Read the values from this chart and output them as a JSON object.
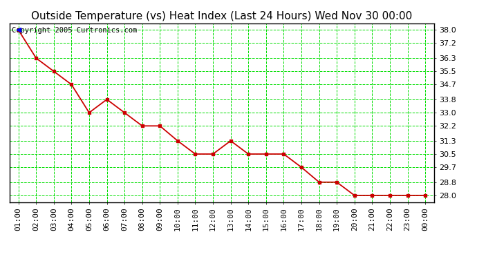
{
  "title": "Outside Temperature (vs) Heat Index (Last 24 Hours) Wed Nov 30 00:00",
  "copyright_text": "Copyright 2005 Curtronics.com",
  "x_labels": [
    "01:00",
    "02:00",
    "03:00",
    "04:00",
    "05:00",
    "06:00",
    "07:00",
    "08:00",
    "09:00",
    "10:00",
    "11:00",
    "12:00",
    "13:00",
    "14:00",
    "15:00",
    "16:00",
    "17:00",
    "18:00",
    "19:00",
    "20:00",
    "21:00",
    "22:00",
    "23:00",
    "00:00"
  ],
  "y_values": [
    38.0,
    36.3,
    35.5,
    34.7,
    33.0,
    33.8,
    33.0,
    32.2,
    32.2,
    31.3,
    30.5,
    30.5,
    31.3,
    30.5,
    30.5,
    30.5,
    29.7,
    28.8,
    28.8,
    28.0,
    28.0,
    28.0,
    28.0,
    28.0
  ],
  "y_min": 27.6,
  "y_max": 38.4,
  "y_ticks": [
    28.0,
    28.8,
    29.7,
    30.5,
    31.3,
    32.2,
    33.0,
    33.8,
    34.7,
    35.5,
    36.3,
    37.2,
    38.0
  ],
  "line_color": "#cc0000",
  "marker_color": "#cc0000",
  "background_color": "#ffffff",
  "plot_bg_color": "#ffffff",
  "grid_color": "#00dd00",
  "grid_major_color": "#009900",
  "title_color": "#000000",
  "title_fontsize": 11,
  "copyright_fontsize": 7.5,
  "tick_fontsize": 8,
  "fig_width": 6.9,
  "fig_height": 3.75,
  "dpi": 100
}
